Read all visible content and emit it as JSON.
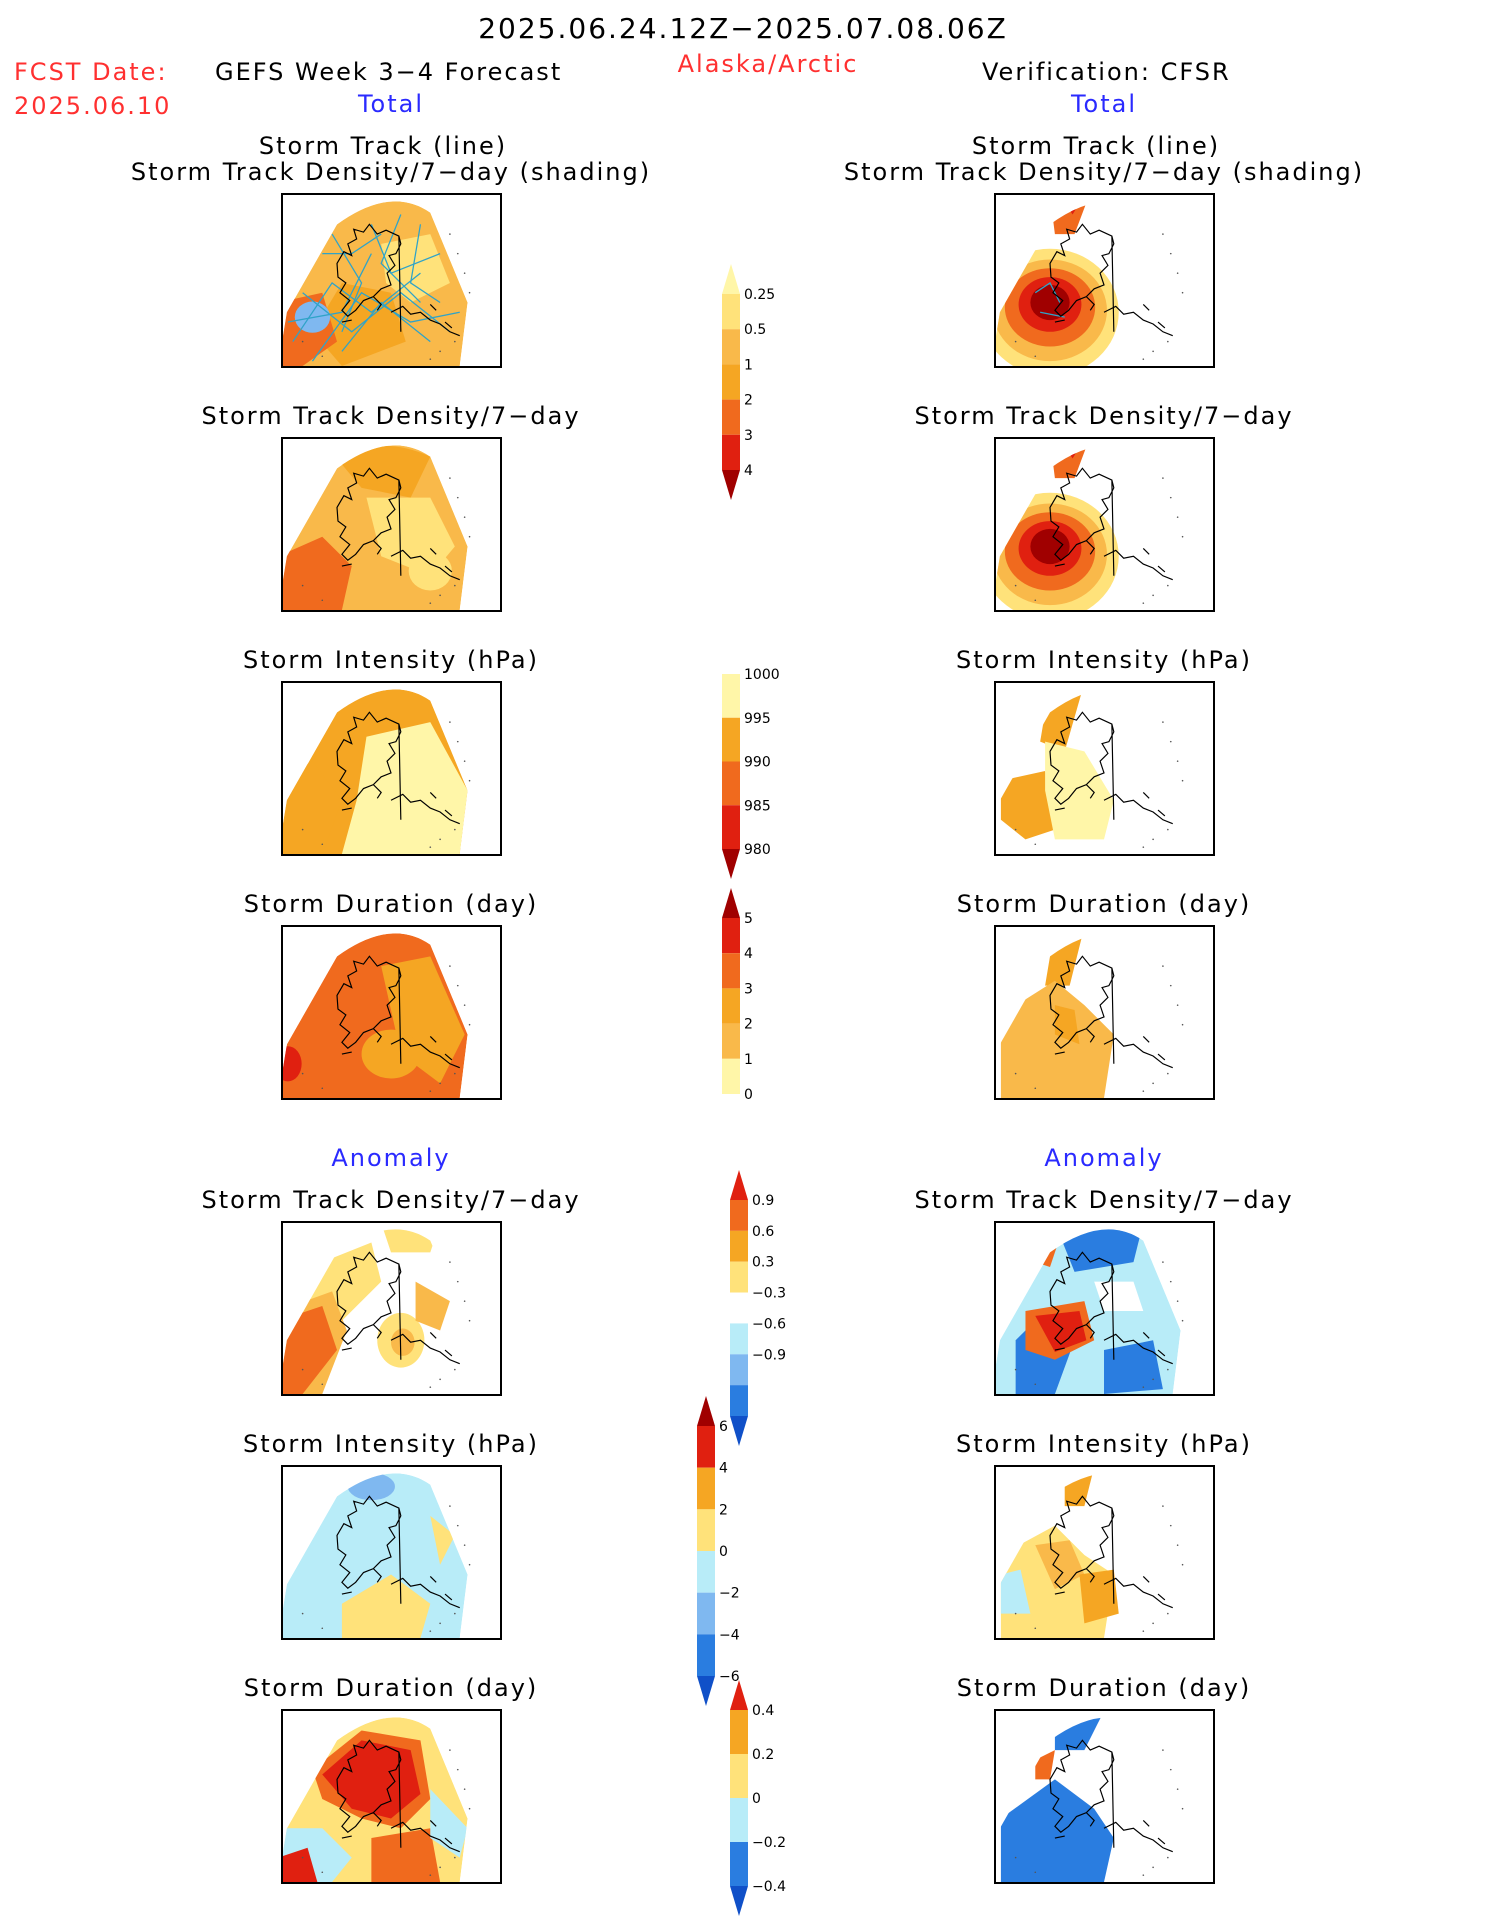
{
  "header": {
    "date_range": "2025.06.24.12Z−2025.07.08.06Z",
    "fcst_label": "FCST Date:",
    "fcst_date": "2025.06.10",
    "forecast_title": "GEFS Week 3−4 Forecast",
    "region": "Alaska/Arctic",
    "verification": "Verification: CFSR"
  },
  "columns": {
    "left_total": "Total",
    "right_total": "Total",
    "left_anomaly": "Anomaly",
    "right_anomaly": "Anomaly"
  },
  "panel_titles": {
    "track_line": "Storm Track (line)",
    "track_density_shading": "Storm Track Density/7−day (shading)",
    "track_density": "Storm Track Density/7−day",
    "intensity": "Storm Intensity (hPa)",
    "duration": "Storm Duration (day)"
  },
  "colors": {
    "pale_yellow": "#fff6a8",
    "light_yellow": "#ffe27a",
    "light_orange": "#f9b94a",
    "orange": "#f5a623",
    "dark_orange": "#f06a1e",
    "red": "#e02010",
    "dark_red": "#a00000",
    "light_blue": "#b8ecf8",
    "mid_blue": "#7fb8f0",
    "blue": "#2a7de0",
    "dark_blue": "#1050c8",
    "track_line": "#2fa3c8"
  },
  "chart_data": [
    {
      "type": "heatmap",
      "name": "density_colorbar",
      "levels": [
        "0.25",
        "0.5",
        "1",
        "2",
        "3",
        "4"
      ],
      "colors": [
        "#fff6a8",
        "#ffe27a",
        "#f9b94a",
        "#f5a623",
        "#f06a1e",
        "#e02010",
        "#a00000"
      ]
    },
    {
      "type": "heatmap",
      "name": "intensity_colorbar",
      "levels": [
        "1000",
        "995",
        "990",
        "985",
        "980"
      ],
      "colors": [
        "#ffffff",
        "#fff6a8",
        "#f5a623",
        "#f06a1e",
        "#e02010",
        "#a00000"
      ]
    },
    {
      "type": "heatmap",
      "name": "duration_colorbar",
      "levels": [
        "5",
        "4",
        "3",
        "2",
        "1",
        "0"
      ],
      "colors": [
        "#a00000",
        "#e02010",
        "#f06a1e",
        "#f5a623",
        "#f9b94a",
        "#fff6a8",
        "#ffffff"
      ]
    },
    {
      "type": "heatmap",
      "name": "density_anomaly_colorbar",
      "levels": [
        "0.9",
        "0.6",
        "0.3",
        "−0.3",
        "−0.6",
        "−0.9"
      ],
      "colors": [
        "#e02010",
        "#f06a1e",
        "#f5a623",
        "#ffe27a",
        "#ffffff",
        "#b8ecf8",
        "#7fb8f0",
        "#2a7de0",
        "#1050c8"
      ]
    },
    {
      "type": "heatmap",
      "name": "intensity_anomaly_colorbar",
      "levels": [
        "6",
        "4",
        "2",
        "0",
        "−2",
        "−4",
        "−6"
      ],
      "colors": [
        "#a00000",
        "#e02010",
        "#f5a623",
        "#ffe27a",
        "#b8ecf8",
        "#7fb8f0",
        "#2a7de0",
        "#1050c8"
      ]
    },
    {
      "type": "heatmap",
      "name": "duration_anomaly_colorbar",
      "levels": [
        "0.4",
        "0.2",
        "0",
        "−0.2",
        "−0.4"
      ],
      "colors": [
        "#e02010",
        "#f5a623",
        "#ffe27a",
        "#b8ecf8",
        "#2a7de0",
        "#1050c8"
      ]
    }
  ]
}
